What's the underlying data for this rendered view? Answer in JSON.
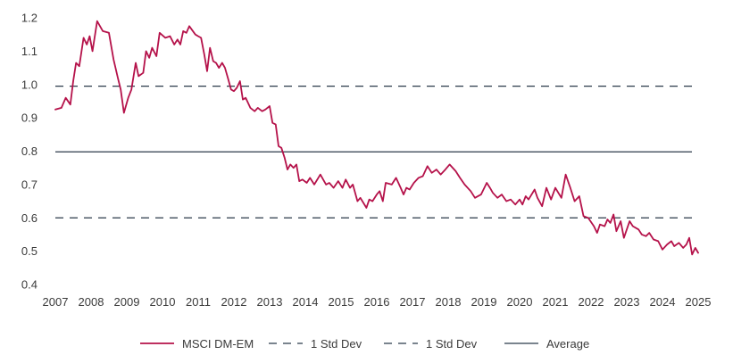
{
  "chart_data": {
    "type": "line",
    "ylim": [
      0.4,
      1.2
    ],
    "yticks": [
      "0.4",
      "0.5",
      "0.6",
      "0.7",
      "0.8",
      "0.9",
      "1.0",
      "1.1",
      "1.2"
    ],
    "xlim": [
      2007,
      2025
    ],
    "xticks": [
      "2007",
      "2008",
      "2009",
      "2010",
      "2011",
      "2012",
      "2013",
      "2014",
      "2015",
      "2016",
      "2017",
      "2018",
      "2019",
      "2020",
      "2021",
      "2022",
      "2023",
      "2024",
      "2025"
    ],
    "grid": false,
    "legend_position": "bottom-center",
    "series": [
      {
        "name": "MSCI DM-EM",
        "color": "#b5124a",
        "style": "solid",
        "x": [
          2007.0,
          2007.17,
          2007.29,
          2007.42,
          2007.5,
          2007.58,
          2007.67,
          2007.79,
          2007.88,
          2007.96,
          2008.04,
          2008.17,
          2008.25,
          2008.33,
          2008.5,
          2008.63,
          2008.75,
          2008.83,
          2008.92,
          2009.04,
          2009.13,
          2009.25,
          2009.33,
          2009.46,
          2009.54,
          2009.63,
          2009.71,
          2009.83,
          2009.92,
          2010.08,
          2010.21,
          2010.33,
          2010.42,
          2010.5,
          2010.58,
          2010.67,
          2010.75,
          2010.92,
          2011.0,
          2011.08,
          2011.17,
          2011.25,
          2011.33,
          2011.42,
          2011.5,
          2011.58,
          2011.67,
          2011.75,
          2011.83,
          2011.92,
          2012.0,
          2012.08,
          2012.17,
          2012.25,
          2012.33,
          2012.46,
          2012.58,
          2012.67,
          2012.79,
          2012.88,
          2013.0,
          2013.08,
          2013.17,
          2013.25,
          2013.33,
          2013.42,
          2013.5,
          2013.58,
          2013.67,
          2013.75,
          2013.83,
          2013.92,
          2014.04,
          2014.13,
          2014.25,
          2014.42,
          2014.58,
          2014.67,
          2014.79,
          2014.92,
          2015.04,
          2015.13,
          2015.25,
          2015.33,
          2015.46,
          2015.54,
          2015.71,
          2015.79,
          2015.88,
          2016.0,
          2016.08,
          2016.17,
          2016.25,
          2016.42,
          2016.54,
          2016.67,
          2016.75,
          2016.83,
          2016.92,
          2017.04,
          2017.17,
          2017.29,
          2017.42,
          2017.54,
          2017.67,
          2017.79,
          2017.92,
          2018.04,
          2018.21,
          2018.33,
          2018.46,
          2018.63,
          2018.75,
          2018.92,
          2019.08,
          2019.17,
          2019.25,
          2019.38,
          2019.5,
          2019.63,
          2019.75,
          2019.88,
          2020.0,
          2020.08,
          2020.17,
          2020.25,
          2020.42,
          2020.5,
          2020.63,
          2020.75,
          2020.88,
          2021.0,
          2021.17,
          2021.29,
          2021.42,
          2021.54,
          2021.67,
          2021.79,
          2021.92,
          2022.08,
          2022.17,
          2022.25,
          2022.38,
          2022.46,
          2022.54,
          2022.63,
          2022.71,
          2022.83,
          2022.92,
          2023.08,
          2023.17,
          2023.33,
          2023.42,
          2023.54,
          2023.63,
          2023.75,
          2023.88,
          2024.0,
          2024.13,
          2024.25,
          2024.33,
          2024.46,
          2024.58,
          2024.67,
          2024.75,
          2024.83,
          2024.92,
          2025.0
        ],
        "y": [
          0.925,
          0.93,
          0.96,
          0.94,
          1.01,
          1.065,
          1.055,
          1.14,
          1.12,
          1.145,
          1.1,
          1.19,
          1.175,
          1.16,
          1.155,
          1.075,
          1.02,
          0.985,
          0.915,
          0.96,
          0.985,
          1.065,
          1.025,
          1.035,
          1.1,
          1.08,
          1.11,
          1.085,
          1.155,
          1.14,
          1.145,
          1.12,
          1.135,
          1.12,
          1.16,
          1.155,
          1.175,
          1.15,
          1.145,
          1.14,
          1.09,
          1.04,
          1.11,
          1.07,
          1.065,
          1.05,
          1.065,
          1.05,
          1.02,
          0.985,
          0.98,
          0.99,
          1.01,
          0.955,
          0.96,
          0.93,
          0.92,
          0.93,
          0.92,
          0.925,
          0.935,
          0.885,
          0.88,
          0.815,
          0.81,
          0.78,
          0.745,
          0.76,
          0.75,
          0.76,
          0.71,
          0.715,
          0.705,
          0.72,
          0.7,
          0.73,
          0.7,
          0.705,
          0.69,
          0.71,
          0.69,
          0.715,
          0.69,
          0.7,
          0.65,
          0.66,
          0.63,
          0.655,
          0.65,
          0.67,
          0.68,
          0.65,
          0.705,
          0.7,
          0.72,
          0.69,
          0.67,
          0.69,
          0.685,
          0.705,
          0.72,
          0.725,
          0.755,
          0.735,
          0.745,
          0.73,
          0.745,
          0.76,
          0.74,
          0.72,
          0.7,
          0.68,
          0.66,
          0.67,
          0.705,
          0.69,
          0.675,
          0.66,
          0.67,
          0.65,
          0.655,
          0.64,
          0.655,
          0.64,
          0.665,
          0.655,
          0.685,
          0.66,
          0.635,
          0.69,
          0.655,
          0.69,
          0.66,
          0.73,
          0.69,
          0.65,
          0.665,
          0.605,
          0.6,
          0.575,
          0.555,
          0.58,
          0.575,
          0.595,
          0.585,
          0.61,
          0.56,
          0.59,
          0.54,
          0.59,
          0.575,
          0.565,
          0.55,
          0.545,
          0.555,
          0.535,
          0.53,
          0.505,
          0.52,
          0.53,
          0.515,
          0.525,
          0.51,
          0.52,
          0.54,
          0.49,
          0.51,
          0.495
        ]
      },
      {
        "name": "1 Std Dev",
        "color": "#2b3a4a",
        "style": "dashed",
        "constant": 0.995
      },
      {
        "name": "1 Std Dev",
        "color": "#2b3a4a",
        "style": "dashed",
        "constant": 0.6
      },
      {
        "name": "Average",
        "color": "#2b3a4a",
        "style": "solid",
        "constant": 0.798
      }
    ]
  }
}
